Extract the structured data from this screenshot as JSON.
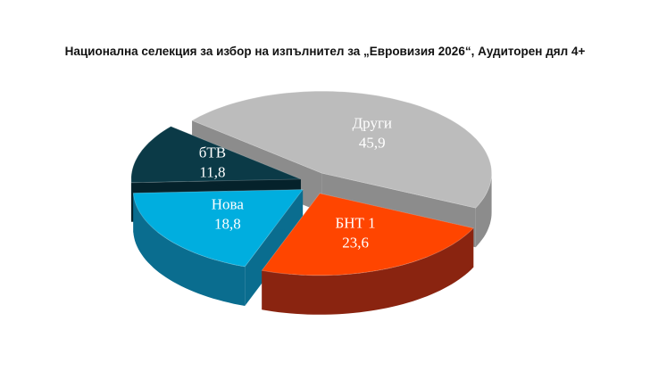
{
  "chart_data": {
    "type": "pie3d",
    "title": "Национална селекция за избор на изпълнител за „Евровизия 2026“, Аудиторен дял 4+",
    "categories": [
      "Други",
      "БНТ 1",
      "Нова",
      "бТВ"
    ],
    "values": [
      45.9,
      23.6,
      18.8,
      11.8
    ],
    "value_labels": [
      "45,9",
      "23,6",
      "18,8",
      "11,8"
    ],
    "colors": [
      "#bcbcbc",
      "#ff4500",
      "#00aedf",
      "#0b3a47"
    ],
    "side_colors": [
      "#8c8c8c",
      "#8a2410",
      "#0a6d8f",
      "#05222b"
    ]
  }
}
